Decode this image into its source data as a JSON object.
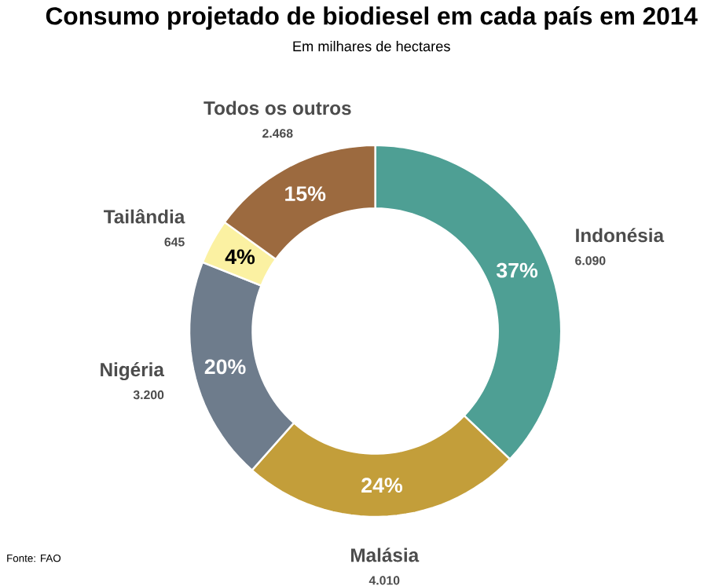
{
  "chart_data": {
    "type": "donut",
    "title": "Consumo projetado de biodiesel em cada país em 2014",
    "subtitle": "Em milhares de hectares",
    "categories": [
      "Indonésia",
      "Malásia",
      "Nigéria",
      "Tailândia",
      "Todos os outros"
    ],
    "values": [
      6090,
      4010,
      3200,
      645,
      2468
    ],
    "value_labels": [
      "6.090",
      "4.010",
      "3.200",
      "645",
      "2.468"
    ],
    "colors": [
      "#4e9f94",
      "#c39e3a",
      "#6e7c8c",
      "#fbf1a2",
      "#9c6a3f"
    ],
    "annotations": [
      "37%",
      "24%",
      "20%",
      "4%",
      "15%",
      "Fonte: FAO"
    ]
  }
}
